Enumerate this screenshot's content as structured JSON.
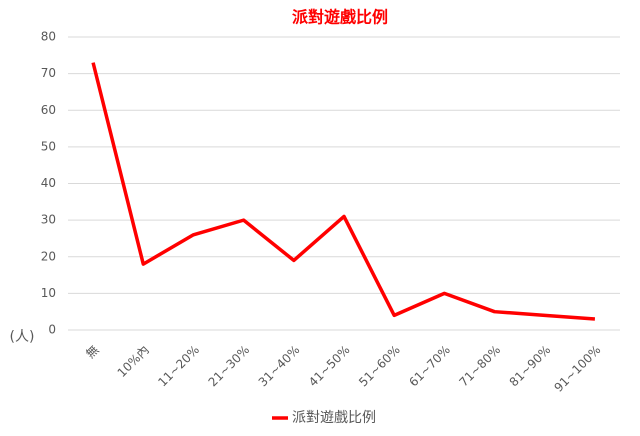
{
  "chart_data": {
    "type": "line",
    "title": "派對遊戲比例",
    "y_label": "(人)",
    "categories": [
      "無",
      "10%內",
      "11~20%",
      "21~30%",
      "31~40%",
      "41~50%",
      "51~60%",
      "61~70%",
      "71~80%",
      "81~90%",
      "91~100%"
    ],
    "series": [
      {
        "name": "派對遊戲比例",
        "color": "#ff0000",
        "values": [
          73,
          18,
          26,
          30,
          19,
          31,
          4,
          10,
          5,
          4,
          3
        ]
      }
    ],
    "ylim": [
      0,
      80
    ],
    "yticks": [
      0,
      10,
      20,
      30,
      40,
      50,
      60,
      70,
      80
    ],
    "grid": true,
    "legend": "bottom"
  }
}
